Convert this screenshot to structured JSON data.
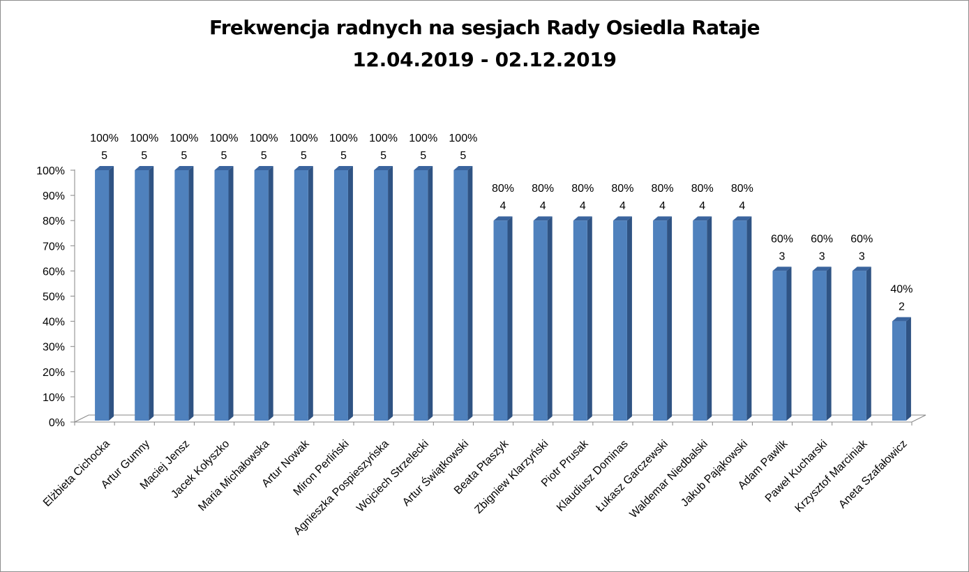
{
  "chart_data": {
    "type": "bar",
    "title": "Frekwencja radnych na sesjach Rady Osiedla Rataje",
    "subtitle": "12.04.2019 - 02.12.2019",
    "categories": [
      "Elżbieta Cichocka",
      "Artur Gumny",
      "Maciej Jensz",
      "Jacek Kołyszko",
      "Maria Michałowska",
      "Artur Nowak",
      "Miron Perliński",
      "Agnieszka Pospieszyńska",
      "Wojciech Strzelecki",
      "Artur Świątkowski",
      "Beata Ptaszyk",
      "Zbigniew Klarzyński",
      "Piotr Prusak",
      "Klaudiusz Dominas",
      "Łukasz Garczewski",
      "Waldemar Niedbalski",
      "Jakub Pająkowski",
      "Adam Pawlik",
      "Paweł Kucharski",
      "Krzysztof Marciniak",
      "Aneta Szafałowicz"
    ],
    "values": [
      100,
      100,
      100,
      100,
      100,
      100,
      100,
      100,
      100,
      100,
      80,
      80,
      80,
      80,
      80,
      80,
      80,
      60,
      60,
      60,
      40
    ],
    "data_labels": [
      "100%",
      "100%",
      "100%",
      "100%",
      "100%",
      "100%",
      "100%",
      "100%",
      "100%",
      "100%",
      "80%",
      "80%",
      "80%",
      "80%",
      "80%",
      "80%",
      "80%",
      "60%",
      "60%",
      "60%",
      "40%"
    ],
    "counts": [
      5,
      5,
      5,
      5,
      5,
      5,
      5,
      5,
      5,
      5,
      4,
      4,
      4,
      4,
      4,
      4,
      4,
      3,
      3,
      3,
      2
    ],
    "ylim": [
      0,
      100
    ],
    "yticks": [
      "0%",
      "10%",
      "20%",
      "30%",
      "40%",
      "50%",
      "60%",
      "70%",
      "80%",
      "90%",
      "100%"
    ],
    "grid": false,
    "legend": "none",
    "colors": {
      "bar_front": "#4f81bd",
      "bar_side": "#2f5383",
      "bar_top": "#3a649e",
      "axis": "#868686"
    }
  }
}
